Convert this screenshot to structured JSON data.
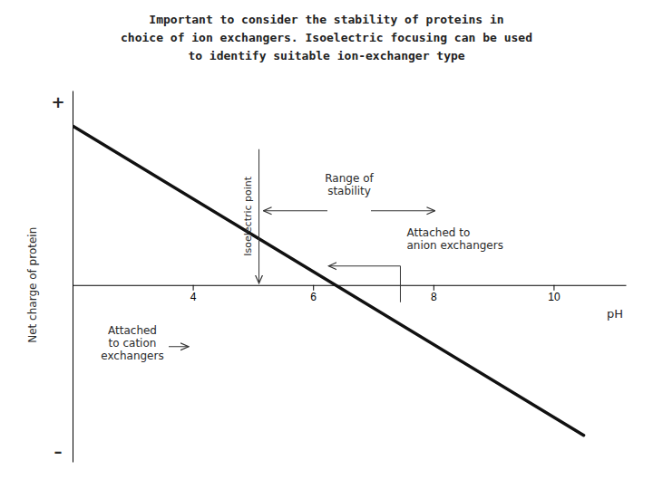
{
  "chart_data": {
    "type": "line",
    "title": "Important to consider the stability of proteins in\nchoice of ion exchangers. Isoelectric focusing can be used\nto identify suitable ion-exchanger type",
    "xlabel": "pH",
    "ylabel": "Net charge of protein",
    "x": [
      2.0,
      10.5
    ],
    "values": [
      1.8,
      -1.7
    ],
    "color": "#111111",
    "xlim": [
      2.0,
      11.2
    ],
    "ylim": [
      -2.0,
      2.2
    ],
    "xticks": [
      4,
      6,
      8,
      10
    ],
    "tick_labels": "x",
    "grid": false,
    "y_end_labels": [
      "+",
      "–"
    ],
    "isoelectric_point": {
      "label": "Isoelectric point",
      "x": 5.1
    },
    "range_of_stability": {
      "label": "Range of\nstability",
      "from": 5.1,
      "to": 8.1
    },
    "anion_label": "Attached to\nanion exchangers",
    "cation_label": "Attached\nto cation\nexchangers"
  }
}
